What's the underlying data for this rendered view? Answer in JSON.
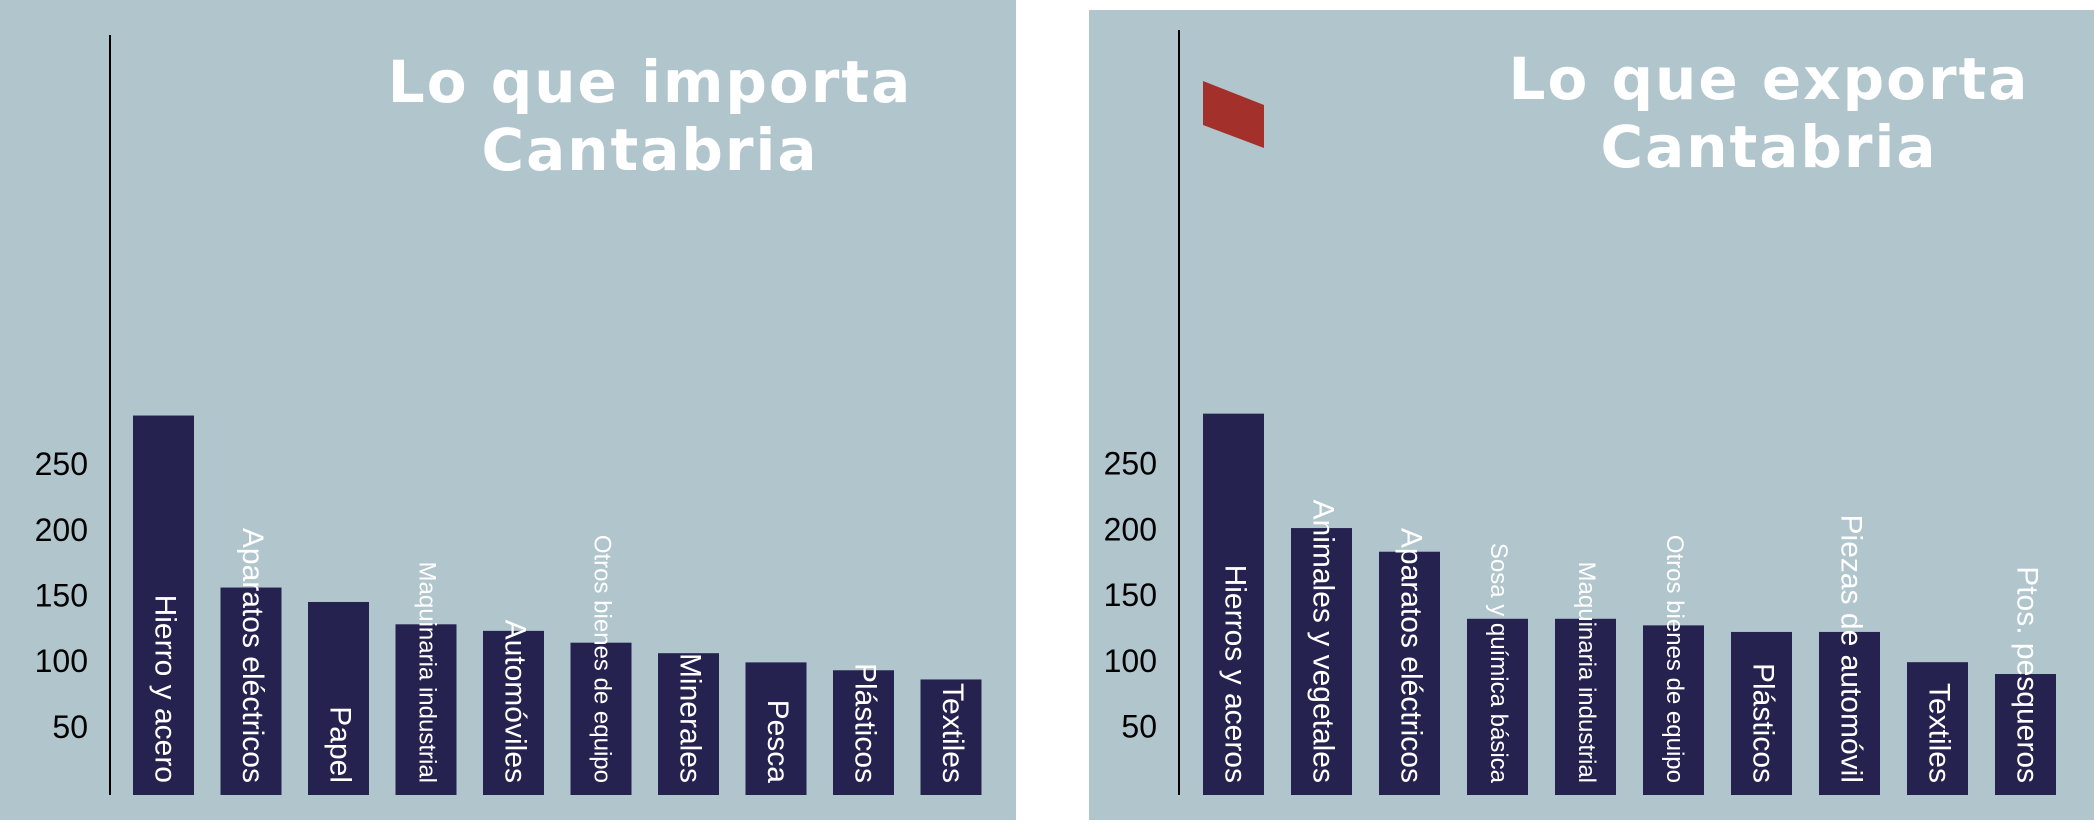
{
  "colors": {
    "background": "#b1c5cd",
    "bar": "#252250",
    "highlight": "#a3302a",
    "title": "#ffffff",
    "axis": "#000000"
  },
  "chart_data": [
    {
      "type": "bar",
      "title_line1": "Lo que importa",
      "title_line2": "Cantabria",
      "categories": [
        "Hierro y acero",
        "Aparatos eléctricos",
        "Papel",
        "Maquinaria industrial",
        "Automóviles",
        "Otros bienes de equipo",
        "Minerales",
        "Pesca",
        "Plásticos",
        "Textiles"
      ],
      "values": [
        289,
        158,
        147,
        130,
        125,
        116,
        108,
        101,
        95,
        88
      ],
      "yticks": [
        50,
        100,
        150,
        200,
        250
      ],
      "ylim": [
        0,
        290
      ],
      "grid": false,
      "legend": "none"
    },
    {
      "type": "bar",
      "title_line1": "Lo que exporta",
      "title_line2": "Cantabria",
      "categories": [
        "Hierros y aceros",
        "Animales y vegetales",
        "Aparatos eléctricos",
        "Sosa y química básica",
        "Maquinaria industrial",
        "Otros bienes de equipo",
        "Plásticos",
        "Piezas de automóvil",
        "Textiles",
        "Ptos. pesqueros"
      ],
      "values": [
        290,
        203,
        185,
        134,
        134,
        129,
        124,
        124,
        101,
        92
      ],
      "yticks": [
        50,
        100,
        150,
        200,
        250
      ],
      "ylim": [
        0,
        290
      ],
      "grid": false,
      "legend": "none"
    }
  ]
}
